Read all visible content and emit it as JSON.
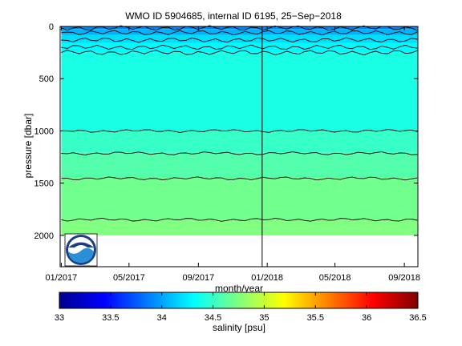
{
  "chart_data": [
    {
      "type": "heatmap",
      "title": "WMO ID 5904685, internal ID 6195, 25−Sep−2018",
      "xlabel": "month/year",
      "ylabel": "pressure [dbar]",
      "x_ticks": [
        "01/2017",
        "05/2017",
        "09/2017",
        "01/2018",
        "05/2018",
        "09/2018"
      ],
      "y_ticks": [
        0,
        500,
        1000,
        1500,
        2000
      ],
      "xlim": [
        "2016-12-30",
        "2018-09-25"
      ],
      "ylim": [
        2300,
        0
      ],
      "y_reversed": true,
      "x_start": "2017-01-01",
      "x_end": "2018-09-24",
      "max_pressure": 2000,
      "marker_date": "2017-12-23",
      "layers": [
        {
          "p_top": 0,
          "p_bottom": 25,
          "salinity": 33.9
        },
        {
          "p_top": 25,
          "p_bottom": 80,
          "salinity": 34.05
        },
        {
          "p_top": 80,
          "p_bottom": 160,
          "salinity": 34.2
        },
        {
          "p_top": 160,
          "p_bottom": 250,
          "salinity": 34.3
        },
        {
          "p_top": 250,
          "p_bottom": 1000,
          "salinity": 34.4
        },
        {
          "p_top": 1000,
          "p_bottom": 1210,
          "salinity": 34.5
        },
        {
          "p_top": 1210,
          "p_bottom": 1450,
          "salinity": 34.6
        },
        {
          "p_top": 1450,
          "p_bottom": 1850,
          "salinity": 34.7
        },
        {
          "p_top": 1850,
          "p_bottom": 2000,
          "salinity": 34.75
        }
      ],
      "contour_depths": [
        15,
        60,
        130,
        200,
        250,
        1000,
        1215,
        1455,
        1850
      ]
    },
    {
      "type": "heatmap",
      "title": "",
      "xlabel": "salinity [psu]",
      "colorbar": true,
      "range": [
        33,
        36.5
      ],
      "ticks": [
        "33",
        "33.5",
        "34",
        "34.5",
        "35",
        "35.5",
        "36",
        "36.5"
      ],
      "colors": [
        "#00008f",
        "#0000ff",
        "#00ffff",
        "#ffff00",
        "#ff0000",
        "#800000"
      ]
    }
  ],
  "logo": {
    "name": "NOAA"
  }
}
